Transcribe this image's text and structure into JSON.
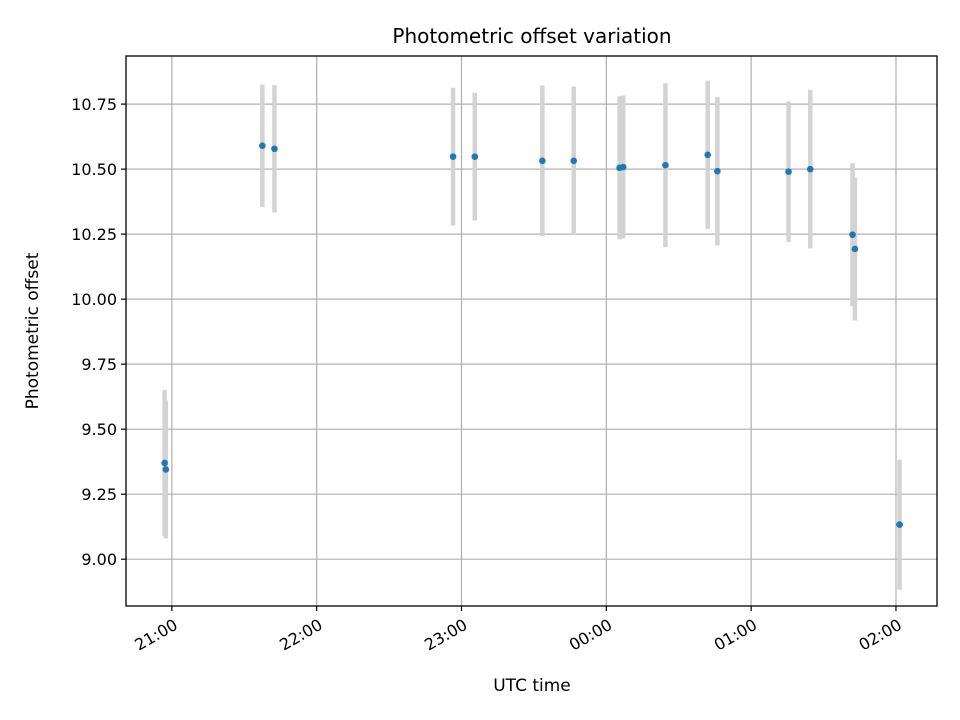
{
  "chart_data": {
    "type": "scatter",
    "title": "Photometric offset variation",
    "xlabel": "UTC time",
    "ylabel": "Photometric offset",
    "x_axis_type": "time",
    "x_reference_date": "2000-01-01",
    "xlim": [
      "2000-01-01T20:41:00",
      "2000-01-02T02:17:00"
    ],
    "ylim": [
      8.82,
      10.935
    ],
    "xticks": [
      "2000-01-01T21:00:00",
      "2000-01-01T22:00:00",
      "2000-01-01T23:00:00",
      "2000-01-02T00:00:00",
      "2000-01-02T01:00:00",
      "2000-01-02T02:00:00"
    ],
    "xtick_labels": [
      "21:00",
      "22:00",
      "23:00",
      "00:00",
      "01:00",
      "02:00"
    ],
    "yticks": [
      9.0,
      9.25,
      9.5,
      9.75,
      10.0,
      10.25,
      10.5,
      10.75
    ],
    "ytick_labels": [
      "9.00",
      "9.25",
      "9.50",
      "9.75",
      "10.00",
      "10.25",
      "10.50",
      "10.75"
    ],
    "grid": true,
    "marker_color": "#1f77b4",
    "errorbar_color": "#d3d3d3",
    "points": [
      {
        "x": "2000-01-01T20:57:00",
        "y": 9.37,
        "yerr": 0.28
      },
      {
        "x": "2000-01-01T20:57:30",
        "y": 9.345,
        "yerr": 0.265
      },
      {
        "x": "2000-01-01T21:37:30",
        "y": 10.59,
        "yerr": 0.235
      },
      {
        "x": "2000-01-01T21:42:30",
        "y": 10.578,
        "yerr": 0.245
      },
      {
        "x": "2000-01-01T22:56:30",
        "y": 10.548,
        "yerr": 0.265
      },
      {
        "x": "2000-01-01T23:05:30",
        "y": 10.548,
        "yerr": 0.245
      },
      {
        "x": "2000-01-01T23:33:30",
        "y": 10.532,
        "yerr": 0.29
      },
      {
        "x": "2000-01-01T23:46:30",
        "y": 10.532,
        "yerr": 0.285
      },
      {
        "x": "2000-01-02T00:05:30",
        "y": 10.505,
        "yerr": 0.275
      },
      {
        "x": "2000-01-02T00:07:00",
        "y": 10.508,
        "yerr": 0.275
      },
      {
        "x": "2000-01-02T00:24:30",
        "y": 10.515,
        "yerr": 0.315
      },
      {
        "x": "2000-01-02T00:42:00",
        "y": 10.555,
        "yerr": 0.285
      },
      {
        "x": "2000-01-02T00:46:00",
        "y": 10.492,
        "yerr": 0.285
      },
      {
        "x": "2000-01-02T01:15:30",
        "y": 10.49,
        "yerr": 0.27
      },
      {
        "x": "2000-01-02T01:24:30",
        "y": 10.5,
        "yerr": 0.305
      },
      {
        "x": "2000-01-02T01:42:00",
        "y": 10.248,
        "yerr": 0.275
      },
      {
        "x": "2000-01-02T01:43:00",
        "y": 10.193,
        "yerr": 0.275
      },
      {
        "x": "2000-01-02T02:01:30",
        "y": 9.133,
        "yerr": 0.25
      }
    ]
  }
}
